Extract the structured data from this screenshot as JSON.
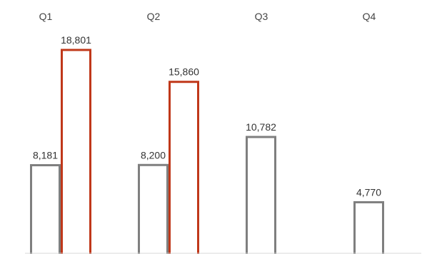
{
  "chart_data": {
    "type": "bar",
    "categories": [
      "Q1",
      "Q2",
      "Q3",
      "Q4"
    ],
    "series": [
      {
        "values": [
          8181,
          8200,
          10782,
          4770
        ],
        "color": "#7f7f7f"
      },
      {
        "values": [
          18801,
          15860,
          null,
          null
        ],
        "color": "#c0381a"
      }
    ],
    "value_labels": [
      [
        "8,181",
        "8,200",
        "10,782",
        "4,770"
      ],
      [
        "18,801",
        "15,860",
        null,
        null
      ]
    ],
    "title": "",
    "xlabel": "",
    "ylabel": "",
    "ylim": [
      0,
      20000
    ],
    "grid": false,
    "legend": "none",
    "x_axis_position": "top"
  }
}
